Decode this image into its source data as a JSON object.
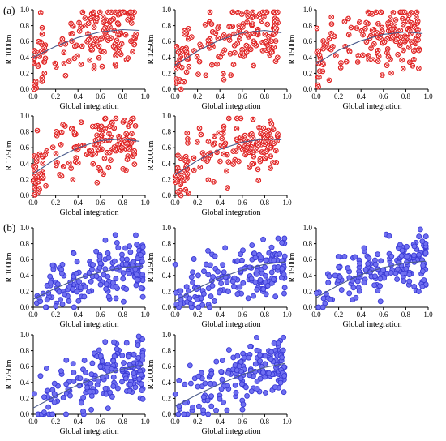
{
  "figure": {
    "group_labels": [
      "(a)",
      "(b)"
    ],
    "x_label": "Global integration",
    "colors": {
      "red_markers": "#e02020",
      "blue_markers": "#3a3ad6",
      "fit_line": "#4a5a8a"
    }
  },
  "chart_data": [
    {
      "type": "scatter",
      "group": "(a)",
      "ylabel": "R 1000m",
      "xlabel": "Global integration",
      "xlim": [
        0,
        1
      ],
      "ylim": [
        0,
        1
      ],
      "x_ticks": [
        0.0,
        0.2,
        0.4,
        0.6,
        0.8,
        1.0
      ],
      "y_ticks": [
        0.0,
        0.2,
        0.4,
        0.6,
        0.8,
        1.0
      ],
      "marker": "red-cross",
      "fit": "quadratic",
      "fit_curve": {
        "x": [
          0.0,
          0.2,
          0.4,
          0.6,
          0.8,
          0.95
        ],
        "y": [
          0.4,
          0.54,
          0.65,
          0.72,
          0.75,
          0.74
        ]
      },
      "point_count": 160,
      "seed": 11,
      "trend": {
        "a": 0.4,
        "b": 0.9,
        "c": -0.55,
        "spread": 0.28,
        "lo": 0.0,
        "hi": 0.97,
        "xmax": 0.92,
        "bias": 0.5
      }
    },
    {
      "type": "scatter",
      "group": "(a)",
      "ylabel": "R 1250m",
      "xlabel": "Global integration",
      "xlim": [
        0,
        1
      ],
      "ylim": [
        0,
        1
      ],
      "x_ticks": [
        0.0,
        0.2,
        0.4,
        0.6,
        0.8,
        1.0
      ],
      "y_ticks": [
        0.0,
        0.2,
        0.4,
        0.6,
        0.8,
        1.0
      ],
      "marker": "red-cross",
      "fit": "quadratic",
      "fit_curve": {
        "x": [
          0.0,
          0.2,
          0.4,
          0.6,
          0.8,
          0.95
        ],
        "y": [
          0.3,
          0.48,
          0.62,
          0.71,
          0.74,
          0.71
        ]
      },
      "point_count": 160,
      "seed": 23,
      "trend": {
        "a": 0.3,
        "b": 1.05,
        "c": -0.65,
        "spread": 0.28,
        "lo": 0.0,
        "hi": 0.97,
        "xmax": 0.92,
        "bias": 0.5
      }
    },
    {
      "type": "scatter",
      "group": "(a)",
      "ylabel": "R 1500m",
      "xlabel": "Global integration",
      "xlim": [
        0,
        1
      ],
      "ylim": [
        0,
        1
      ],
      "x_ticks": [
        0.0,
        0.2,
        0.4,
        0.6,
        0.8,
        1.0
      ],
      "y_ticks": [
        0.0,
        0.2,
        0.4,
        0.6,
        0.8,
        1.0
      ],
      "marker": "red-cross",
      "fit": "quadratic",
      "fit_curve": {
        "x": [
          0.0,
          0.2,
          0.4,
          0.6,
          0.8,
          0.95
        ],
        "y": [
          0.32,
          0.49,
          0.61,
          0.69,
          0.72,
          0.7
        ]
      },
      "point_count": 160,
      "seed": 37,
      "trend": {
        "a": 0.32,
        "b": 0.98,
        "c": -0.6,
        "spread": 0.28,
        "lo": 0.0,
        "hi": 0.97,
        "xmax": 0.92,
        "bias": 0.5
      }
    },
    {
      "type": "scatter",
      "group": "(a)",
      "ylabel": "R 1750m",
      "xlabel": "Global integration",
      "xlim": [
        0,
        1
      ],
      "ylim": [
        0,
        1
      ],
      "x_ticks": [
        0.0,
        0.2,
        0.4,
        0.6,
        0.8,
        1.0
      ],
      "y_ticks": [
        0.0,
        0.2,
        0.4,
        0.6,
        0.8,
        1.0
      ],
      "marker": "red-cross",
      "fit": "quadratic",
      "fit_curve": {
        "x": [
          0.0,
          0.2,
          0.4,
          0.6,
          0.8,
          0.95
        ],
        "y": [
          0.27,
          0.46,
          0.6,
          0.69,
          0.71,
          0.68
        ]
      },
      "point_count": 160,
      "seed": 51,
      "trend": {
        "a": 0.27,
        "b": 1.05,
        "c": -0.68,
        "spread": 0.28,
        "lo": 0.0,
        "hi": 0.97,
        "xmax": 0.92,
        "bias": 0.5
      }
    },
    {
      "type": "scatter",
      "group": "(a)",
      "ylabel": "R 2000m",
      "xlabel": "Global integration",
      "xlim": [
        0,
        1
      ],
      "ylim": [
        0,
        1
      ],
      "x_ticks": [
        0.0,
        0.2,
        0.4,
        0.6,
        0.8,
        1.0
      ],
      "y_ticks": [
        0.0,
        0.2,
        0.4,
        0.6,
        0.8,
        1.0
      ],
      "marker": "red-cross",
      "fit": "quadratic",
      "fit_curve": {
        "x": [
          0.0,
          0.2,
          0.4,
          0.6,
          0.8,
          0.95
        ],
        "y": [
          0.26,
          0.44,
          0.58,
          0.67,
          0.71,
          0.7
        ]
      },
      "point_count": 160,
      "seed": 67,
      "trend": {
        "a": 0.26,
        "b": 1.0,
        "c": -0.62,
        "spread": 0.28,
        "lo": 0.0,
        "hi": 0.97,
        "xmax": 0.92,
        "bias": 0.5
      }
    },
    {
      "type": "scatter",
      "group": "(b)",
      "ylabel": "R 1000m",
      "xlabel": "Global integration",
      "xlim": [
        0,
        1
      ],
      "ylim": [
        0,
        1
      ],
      "x_ticks": [
        0.0,
        0.2,
        0.4,
        0.6,
        0.8,
        1.0
      ],
      "y_ticks": [
        0.0,
        0.2,
        0.4,
        0.6,
        0.8,
        1.0
      ],
      "marker": "blue-dot",
      "fit": "quadratic",
      "fit_curve": {
        "x": [
          0.0,
          0.2,
          0.4,
          0.6,
          0.8,
          0.98
        ],
        "y": [
          0.1,
          0.24,
          0.36,
          0.44,
          0.5,
          0.52
        ]
      },
      "point_count": 180,
      "seed": 83,
      "trend": {
        "a": 0.1,
        "b": 0.75,
        "c": -0.34,
        "spread": 0.25,
        "lo": 0.0,
        "hi": 0.98,
        "xmax": 0.98,
        "bias": 1.6
      }
    },
    {
      "type": "scatter",
      "group": "(b)",
      "ylabel": "R 1250m",
      "xlabel": "Global integration",
      "xlim": [
        0,
        1
      ],
      "ylim": [
        0,
        1
      ],
      "x_ticks": [
        0.0,
        0.2,
        0.4,
        0.6,
        0.8,
        1.0
      ],
      "y_ticks": [
        0.0,
        0.2,
        0.4,
        0.6,
        0.8,
        1.0
      ],
      "marker": "blue-dot",
      "fit": "quadratic",
      "fit_curve": {
        "x": [
          0.0,
          0.2,
          0.4,
          0.6,
          0.8,
          0.98
        ],
        "y": [
          0.08,
          0.24,
          0.37,
          0.47,
          0.54,
          0.57
        ]
      },
      "point_count": 180,
      "seed": 97,
      "trend": {
        "a": 0.08,
        "b": 0.82,
        "c": -0.36,
        "spread": 0.25,
        "lo": 0.0,
        "hi": 0.98,
        "xmax": 0.98,
        "bias": 1.6
      }
    },
    {
      "type": "scatter",
      "group": "(b)",
      "ylabel": "R 1500m",
      "xlabel": "Global integration",
      "xlim": [
        0,
        1
      ],
      "ylim": [
        0,
        1
      ],
      "x_ticks": [
        0.0,
        0.2,
        0.4,
        0.6,
        0.8,
        1.0
      ],
      "y_ticks": [
        0.0,
        0.2,
        0.4,
        0.6,
        0.8,
        1.0
      ],
      "marker": "blue-dot",
      "fit": "quadratic",
      "fit_curve": {
        "x": [
          0.0,
          0.2,
          0.4,
          0.6,
          0.8,
          0.98
        ],
        "y": [
          0.12,
          0.28,
          0.41,
          0.5,
          0.56,
          0.58
        ]
      },
      "point_count": 180,
      "seed": 109,
      "trend": {
        "a": 0.12,
        "b": 0.85,
        "c": -0.4,
        "spread": 0.25,
        "lo": 0.0,
        "hi": 0.98,
        "xmax": 0.98,
        "bias": 1.6
      }
    },
    {
      "type": "scatter",
      "group": "(b)",
      "ylabel": "R 1750m",
      "xlabel": "Global integration",
      "xlim": [
        0,
        1
      ],
      "ylim": [
        0,
        1
      ],
      "x_ticks": [
        0.0,
        0.2,
        0.4,
        0.6,
        0.8,
        1.0
      ],
      "y_ticks": [
        0.0,
        0.2,
        0.4,
        0.6,
        0.8,
        1.0
      ],
      "marker": "blue-dot",
      "fit": "quadratic",
      "fit_curve": {
        "x": [
          0.0,
          0.2,
          0.4,
          0.6,
          0.8,
          0.98
        ],
        "y": [
          0.08,
          0.23,
          0.37,
          0.48,
          0.57,
          0.62
        ]
      },
      "point_count": 180,
      "seed": 127,
      "trend": {
        "a": 0.08,
        "b": 0.8,
        "c": -0.27,
        "spread": 0.25,
        "lo": 0.0,
        "hi": 0.98,
        "xmax": 0.98,
        "bias": 1.6
      }
    },
    {
      "type": "scatter",
      "group": "(b)",
      "ylabel": "R 2000m",
      "xlabel": "Global integration",
      "xlim": [
        0,
        1
      ],
      "ylim": [
        0,
        1
      ],
      "x_ticks": [
        0.0,
        0.2,
        0.4,
        0.6,
        0.8,
        1.0
      ],
      "y_ticks": [
        0.0,
        0.2,
        0.4,
        0.6,
        0.8,
        1.0
      ],
      "marker": "blue-dot",
      "fit": "quadratic",
      "fit_curve": {
        "x": [
          0.0,
          0.2,
          0.4,
          0.6,
          0.8,
          0.98
        ],
        "y": [
          0.1,
          0.25,
          0.38,
          0.5,
          0.59,
          0.64
        ]
      },
      "point_count": 180,
      "seed": 139,
      "trend": {
        "a": 0.1,
        "b": 0.8,
        "c": -0.27,
        "spread": 0.25,
        "lo": 0.0,
        "hi": 0.98,
        "xmax": 0.98,
        "bias": 1.6
      }
    }
  ]
}
